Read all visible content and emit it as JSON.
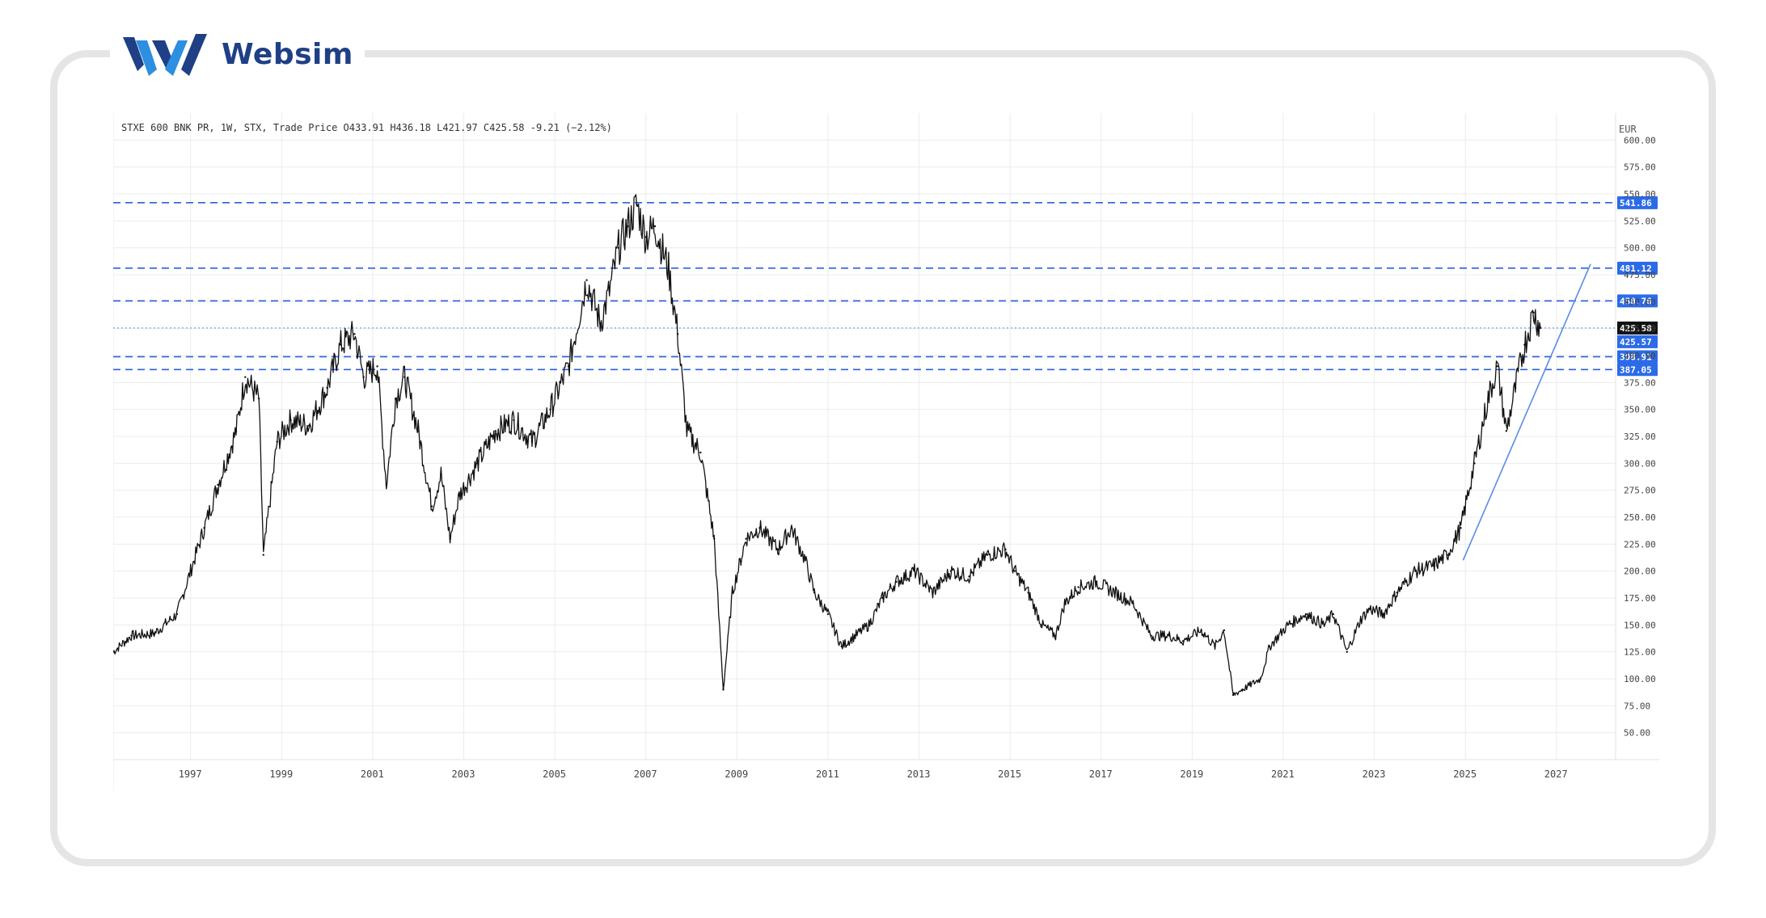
{
  "brand": {
    "name": "Websim",
    "logo_icon": "websim-w-logo",
    "color": "#1f3f86",
    "accent": "#2d5bd0"
  },
  "chart_data": {
    "type": "line",
    "title": "STXE 600 BNK PR, 1W, STX, Trade Price",
    "ohlc": {
      "open": "O433.91",
      "high": "H436.18",
      "low": "L421.97",
      "close": "C425.58",
      "change": "-9.21 (−2.12%)"
    },
    "currency": "EUR",
    "ylim": [
      25,
      625
    ],
    "xlim": [
      1995.6,
      2028.6
    ],
    "x_ticks": [
      "1997",
      "1999",
      "2001",
      "2003",
      "2005",
      "2007",
      "2009",
      "2011",
      "2013",
      "2015",
      "2017",
      "2019",
      "2021",
      "2023",
      "2025",
      "2027"
    ],
    "y_ticks": [
      "600.00",
      "575.00",
      "550.00",
      "525.00",
      "500.00",
      "475.00",
      "450.00",
      "425.00",
      "400.00",
      "375.00",
      "350.00",
      "325.00",
      "300.00",
      "275.00",
      "250.00",
      "225.00",
      "200.00",
      "175.00",
      "150.00",
      "125.00",
      "100.00",
      "75.00",
      "50.00"
    ],
    "horizontal_levels": [
      {
        "label": "541.86",
        "value": 541.86,
        "style": "dashed"
      },
      {
        "label": "481.12",
        "value": 481.12,
        "style": "dashed"
      },
      {
        "label": "450.76",
        "value": 450.76,
        "style": "dashed"
      },
      {
        "label": "398.91",
        "value": 398.91,
        "style": "dashed"
      },
      {
        "label": "387.05",
        "value": 387.05,
        "style": "dashed"
      }
    ],
    "last_price": {
      "label": "425.58",
      "value": 425.58
    },
    "prev_price": {
      "label": "425.57",
      "value": 425.57
    },
    "trendline": {
      "x": [
        2025.25,
        2028.05
      ],
      "y": [
        210,
        485
      ]
    },
    "series": [
      {
        "x": [
          1995.6,
          1996.0,
          1996.5,
          1997.0,
          1997.3,
          1997.6,
          1997.9,
          1998.3,
          1998.5,
          1998.8,
          1998.9,
          1999.2,
          1999.5,
          1999.9,
          2000.3,
          2000.6,
          2000.9,
          2001.1,
          2001.4,
          2001.6,
          2001.8,
          2002.0,
          2002.3,
          2002.6,
          2002.8,
          2003.0,
          2003.2,
          2003.6,
          2004.0,
          2004.4,
          2004.8,
          2005.2,
          2005.6,
          2006.0,
          2006.3,
          2006.5,
          2006.7,
          2006.9,
          2007.1,
          2007.3,
          2007.5,
          2007.8,
          2008.0,
          2008.2,
          2008.5,
          2008.8,
          2009.0,
          2009.2,
          2009.5,
          2009.8,
          2010.2,
          2010.5,
          2010.8,
          2011.0,
          2011.3,
          2011.6,
          2011.9,
          2012.2,
          2012.5,
          2012.8,
          2013.2,
          2013.6,
          2014.0,
          2014.4,
          2014.8,
          2015.2,
          2015.4,
          2015.7,
          2016.0,
          2016.3,
          2016.5,
          2016.8,
          2017.2,
          2017.6,
          2018.0,
          2018.4,
          2018.8,
          2019.1,
          2019.5,
          2019.8,
          2020.0,
          2020.2,
          2020.4,
          2020.8,
          2021.0,
          2021.4,
          2021.8,
          2022.2,
          2022.4,
          2022.7,
          2023.0,
          2023.2,
          2023.5,
          2023.8,
          2024.2,
          2024.6,
          2024.9,
          2025.2,
          2025.5,
          2025.8,
          2026.0,
          2026.2,
          2026.4,
          2026.6,
          2026.8,
          2026.95
        ],
        "y": [
          125,
          140,
          142,
          160,
          200,
          240,
          280,
          330,
          380,
          360,
          215,
          320,
          340,
          335,
          370,
          410,
          420,
          380,
          390,
          280,
          360,
          380,
          330,
          260,
          290,
          230,
          270,
          300,
          330,
          340,
          320,
          350,
          390,
          470,
          430,
          460,
          500,
          520,
          540,
          510,
          520,
          480,
          420,
          330,
          310,
          230,
          90,
          180,
          230,
          240,
          220,
          240,
          210,
          180,
          160,
          130,
          140,
          150,
          175,
          190,
          200,
          180,
          200,
          195,
          215,
          220,
          200,
          180,
          150,
          140,
          170,
          185,
          190,
          180,
          170,
          140,
          140,
          135,
          145,
          130,
          145,
          85,
          90,
          100,
          130,
          150,
          160,
          150,
          160,
          125,
          155,
          165,
          160,
          180,
          200,
          205,
          215,
          240,
          300,
          360,
          390,
          330,
          370,
          410,
          440,
          425.58
        ]
      }
    ]
  }
}
